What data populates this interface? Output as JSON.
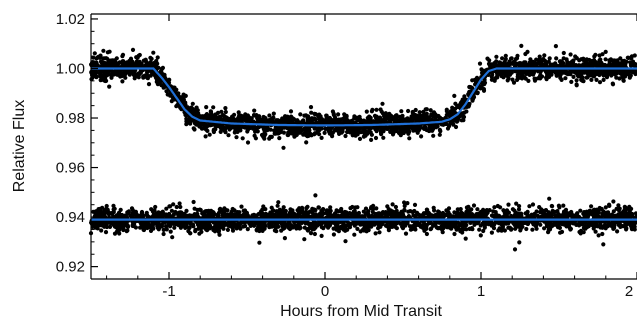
{
  "chart_data": {
    "type": "scatter",
    "title": "",
    "xlabel": "Hours from Mid Transit",
    "ylabel": "Relative Flux",
    "xlim": [
      -1.5,
      2.0
    ],
    "ylim": [
      0.915,
      1.022
    ],
    "x_ticks": [
      -1,
      0,
      1,
      2
    ],
    "y_ticks": [
      0.92,
      0.94,
      0.96,
      0.98,
      1.0
    ],
    "x_tick_labels": [
      "-1",
      "0",
      "1",
      "2"
    ],
    "y_tick_labels": [
      "0.92",
      "0.94",
      "0.96",
      "0.98",
      "1.00"
    ],
    "y_top_tick_label": "1.02",
    "y_top_tick_value": 1.02,
    "grid": false,
    "legend": "none",
    "colors": {
      "points": "#000000",
      "model": "#1f6fd6"
    },
    "series": [
      {
        "kind": "scatter",
        "description_key": "transit_light_curve",
        "x_range": [
          -1.5,
          2.0
        ],
        "baseline_flux": 1.0,
        "transit_depth_flux": 0.977,
        "ingress_hours": [
          -1.1,
          -0.82
        ],
        "egress_hours": [
          0.8,
          1.08
        ],
        "scatter_flux": 0.004
      },
      {
        "kind": "line",
        "description_key": "transit_model",
        "x": [
          -1.5,
          -1.1,
          -1.05,
          -1.0,
          -0.95,
          -0.9,
          -0.85,
          -0.8,
          -0.6,
          -0.3,
          0.0,
          0.3,
          0.6,
          0.75,
          0.8,
          0.85,
          0.9,
          0.95,
          1.0,
          1.05,
          1.1,
          2.0
        ],
        "y": [
          1.0,
          1.0,
          0.9965,
          0.9925,
          0.988,
          0.9835,
          0.9805,
          0.979,
          0.9778,
          0.9772,
          0.977,
          0.9772,
          0.9778,
          0.9785,
          0.9795,
          0.9815,
          0.9855,
          0.9905,
          0.9955,
          0.999,
          1.0,
          1.0
        ]
      },
      {
        "kind": "scatter",
        "description_key": "residuals_offset",
        "x_range": [
          -1.5,
          2.0
        ],
        "baseline_flux": 0.939,
        "scatter_flux": 0.004
      },
      {
        "kind": "line",
        "description_key": "residual_baseline",
        "x": [
          -1.5,
          2.0
        ],
        "y": [
          0.939,
          0.939
        ]
      }
    ]
  }
}
